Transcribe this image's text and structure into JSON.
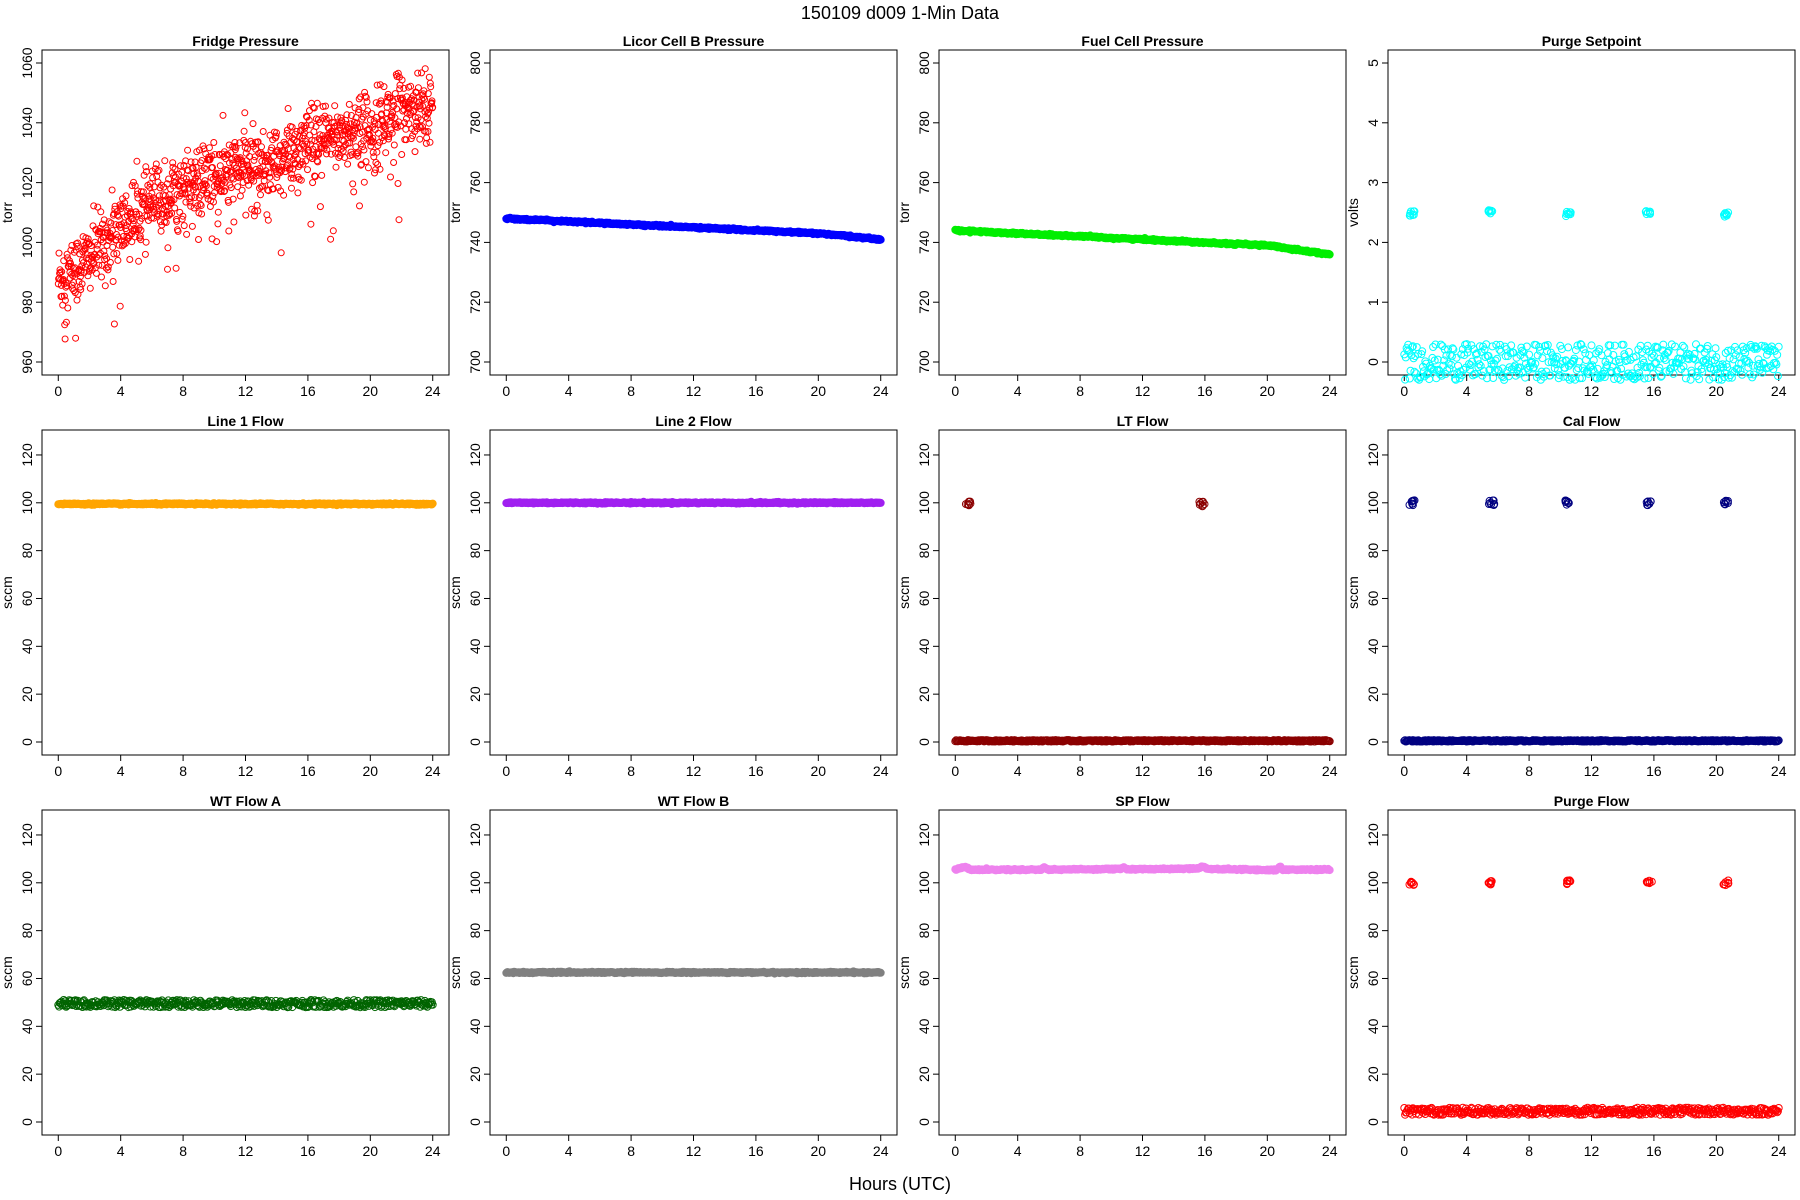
{
  "figure": {
    "title": "150109   d009   1-Min Data",
    "xlabel": "Hours (UTC)"
  },
  "chart_data": [
    {
      "type": "scatter",
      "title": "Fridge Pressure",
      "ylabel": "torr",
      "color": "#ff0000",
      "marker": "open",
      "xlim": [
        0,
        24
      ],
      "ylim": [
        960,
        1060
      ],
      "xticks": [
        0,
        4,
        8,
        12,
        16,
        20,
        24
      ],
      "yticks": [
        960,
        980,
        1000,
        1020,
        1040,
        1060
      ],
      "pattern": "noisy_trend",
      "trend": [
        [
          0,
          988
        ],
        [
          1,
          990
        ],
        [
          2,
          995
        ],
        [
          4,
          1005
        ],
        [
          6,
          1013
        ],
        [
          8,
          1018
        ],
        [
          10,
          1022
        ],
        [
          12,
          1025
        ],
        [
          14,
          1027
        ],
        [
          16,
          1032
        ],
        [
          18,
          1036
        ],
        [
          20,
          1038
        ],
        [
          22,
          1045
        ],
        [
          24,
          1047
        ]
      ]
    },
    {
      "type": "scatter",
      "title": "Licor Cell B Pressure",
      "ylabel": "torr",
      "color": "#0000ff",
      "marker": "filled",
      "xlim": [
        0,
        24
      ],
      "ylim": [
        700,
        800
      ],
      "xticks": [
        0,
        4,
        8,
        12,
        16,
        20,
        24
      ],
      "yticks": [
        700,
        720,
        740,
        760,
        780,
        800
      ],
      "pattern": "line",
      "x": [
        0,
        4,
        8,
        12,
        16,
        20,
        24
      ],
      "y": [
        748,
        747,
        746,
        745,
        744,
        743,
        741
      ]
    },
    {
      "type": "scatter",
      "title": "Fuel Cell Pressure",
      "ylabel": "torr",
      "color": "#00ee00",
      "marker": "filled",
      "xlim": [
        0,
        24
      ],
      "ylim": [
        700,
        800
      ],
      "xticks": [
        0,
        4,
        8,
        12,
        16,
        20,
        24
      ],
      "yticks": [
        700,
        720,
        740,
        760,
        780,
        800
      ],
      "pattern": "line",
      "x": [
        0,
        4,
        8,
        12,
        16,
        20,
        24
      ],
      "y": [
        744,
        743,
        742,
        741,
        740,
        739,
        736
      ]
    },
    {
      "type": "scatter",
      "title": "Purge Setpoint",
      "ylabel": "volts",
      "color": "#00ffff",
      "marker": "open",
      "xlim": [
        0,
        24
      ],
      "ylim": [
        0,
        5
      ],
      "xticks": [
        0,
        4,
        8,
        12,
        16,
        20,
        24
      ],
      "yticks": [
        0,
        1,
        2,
        3,
        4,
        5
      ],
      "pattern": "base_events",
      "base": 0,
      "events": [
        [
          0.5,
          2.48
        ],
        [
          5.5,
          2.52
        ],
        [
          10.5,
          2.48
        ],
        [
          15.6,
          2.5
        ],
        [
          20.6,
          2.47
        ]
      ]
    },
    {
      "type": "scatter",
      "title": "Line 1 Flow",
      "ylabel": "sccm",
      "color": "#ffa500",
      "marker": "filled",
      "xlim": [
        0,
        24
      ],
      "ylim": [
        0,
        125
      ],
      "xticks": [
        0,
        4,
        8,
        12,
        16,
        20,
        24
      ],
      "yticks": [
        0,
        20,
        40,
        60,
        80,
        100,
        120
      ],
      "pattern": "line",
      "x": [
        0,
        24
      ],
      "y": [
        99.5,
        99.5
      ]
    },
    {
      "type": "scatter",
      "title": "Line 2 Flow",
      "ylabel": "sccm",
      "color": "#a020f0",
      "marker": "filled",
      "xlim": [
        0,
        24
      ],
      "ylim": [
        0,
        125
      ],
      "xticks": [
        0,
        4,
        8,
        12,
        16,
        20,
        24
      ],
      "yticks": [
        0,
        20,
        40,
        60,
        80,
        100,
        120
      ],
      "pattern": "line",
      "x": [
        0,
        24
      ],
      "y": [
        100,
        100
      ]
    },
    {
      "type": "scatter",
      "title": "LT Flow",
      "ylabel": "sccm",
      "color": "#8b0000",
      "marker": "open",
      "xlim": [
        0,
        24
      ],
      "ylim": [
        0,
        125
      ],
      "xticks": [
        0,
        4,
        8,
        12,
        16,
        20,
        24
      ],
      "yticks": [
        0,
        20,
        40,
        60,
        80,
        100,
        120
      ],
      "pattern": "base_events",
      "base": 0.5,
      "events": [
        [
          0.8,
          99.5
        ],
        [
          15.8,
          99.5
        ]
      ]
    },
    {
      "type": "scatter",
      "title": "Cal Flow",
      "ylabel": "sccm",
      "color": "#000080",
      "marker": "open",
      "xlim": [
        0,
        24
      ],
      "ylim": [
        0,
        125
      ],
      "xticks": [
        0,
        4,
        8,
        12,
        16,
        20,
        24
      ],
      "yticks": [
        0,
        20,
        40,
        60,
        80,
        100,
        120
      ],
      "pattern": "base_events",
      "base": 0.5,
      "events": [
        [
          0.5,
          100
        ],
        [
          5.6,
          100
        ],
        [
          10.5,
          100
        ],
        [
          15.7,
          100
        ],
        [
          20.6,
          100
        ]
      ]
    },
    {
      "type": "scatter",
      "title": "WT Flow A",
      "ylabel": "sccm",
      "color": "#006400",
      "marker": "open",
      "xlim": [
        0,
        24
      ],
      "ylim": [
        0,
        125
      ],
      "xticks": [
        0,
        4,
        8,
        12,
        16,
        20,
        24
      ],
      "yticks": [
        0,
        20,
        40,
        60,
        80,
        100,
        120
      ],
      "pattern": "band",
      "x": [
        0,
        24
      ],
      "y": [
        49.5,
        49.5
      ]
    },
    {
      "type": "scatter",
      "title": "WT Flow B",
      "ylabel": "sccm",
      "color": "#808080",
      "marker": "filled",
      "xlim": [
        0,
        24
      ],
      "ylim": [
        0,
        125
      ],
      "xticks": [
        0,
        4,
        8,
        12,
        16,
        20,
        24
      ],
      "yticks": [
        0,
        20,
        40,
        60,
        80,
        100,
        120
      ],
      "pattern": "line",
      "x": [
        0,
        24
      ],
      "y": [
        62.5,
        62.5
      ]
    },
    {
      "type": "scatter",
      "title": "SP Flow",
      "ylabel": "sccm",
      "color": "#ee82ee",
      "marker": "filled",
      "xlim": [
        0,
        24
      ],
      "ylim": [
        0,
        125
      ],
      "xticks": [
        0,
        4,
        8,
        12,
        16,
        20,
        24
      ],
      "yticks": [
        0,
        20,
        40,
        60,
        80,
        100,
        120
      ],
      "pattern": "line",
      "x": [
        0,
        0.5,
        0.7,
        1.0,
        5.5,
        5.7,
        6.0,
        10.6,
        10.8,
        11.0,
        15.6,
        15.8,
        16.2,
        20.6,
        20.8,
        21.0,
        24
      ],
      "y": [
        105.5,
        106.5,
        106.5,
        105.5,
        105.5,
        106.5,
        105.5,
        105.8,
        106.5,
        105.6,
        106,
        107,
        105.8,
        105.3,
        106.8,
        105.5,
        105.5
      ]
    },
    {
      "type": "scatter",
      "title": "Purge Flow",
      "ylabel": "sccm",
      "color": "#ff0000",
      "marker": "open",
      "xlim": [
        0,
        24
      ],
      "ylim": [
        0,
        125
      ],
      "xticks": [
        0,
        4,
        8,
        12,
        16,
        20,
        24
      ],
      "yticks": [
        0,
        20,
        40,
        60,
        80,
        100,
        120
      ],
      "pattern": "base_events",
      "base": 4.5,
      "events": [
        [
          0.5,
          100
        ],
        [
          5.5,
          100
        ],
        [
          10.5,
          100
        ],
        [
          15.7,
          100
        ],
        [
          20.6,
          100
        ]
      ]
    }
  ]
}
